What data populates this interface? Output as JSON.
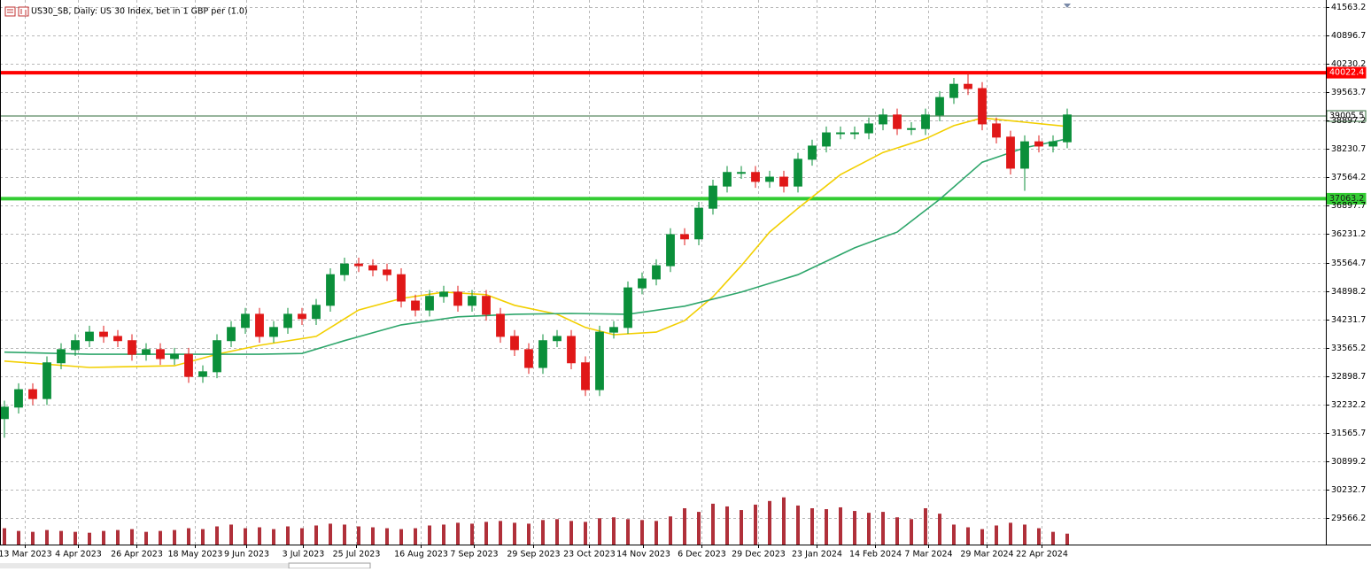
{
  "chart_data": {
    "type": "candlestick",
    "title": "US30_SB, Daily:  US 30 Index, bet in 1 GBP per (1.0)",
    "up_color": "#0b8f3a",
    "down_color": "#e01818",
    "grid": true,
    "open": [
      31900,
      32170,
      32580,
      32370,
      33210,
      33520,
      33730,
      33930,
      33830,
      33730,
      33410,
      33520,
      33310,
      33410,
      32890,
      33000,
      33730,
      34040,
      34350,
      33830,
      34040,
      34350,
      34250,
      34560,
      35280,
      35530,
      35490,
      35390,
      35280,
      34660,
      34450,
      34770,
      34870,
      34560,
      34770,
      34350,
      33830,
      33520,
      33100,
      33730,
      33830,
      33210,
      32580,
      33930,
      34040,
      34970,
      35180,
      35490,
      36220,
      36120,
      36840,
      37360,
      37680,
      37680,
      37470,
      37570,
      37360,
      37990,
      38300,
      38610,
      38610,
      38610,
      38820,
      39030,
      38710,
      38710,
      39030,
      39440,
      39750,
      39650,
      38820,
      38510,
      37780,
      38400,
      38300,
      38400
    ],
    "high": [
      32320,
      32730,
      32730,
      33360,
      33670,
      33880,
      34080,
      34080,
      33980,
      33880,
      33670,
      33670,
      33560,
      33560,
      33150,
      33880,
      34190,
      34500,
      34500,
      34190,
      34500,
      34500,
      34710,
      35430,
      35680,
      35680,
      35640,
      35540,
      35430,
      34810,
      34920,
      35020,
      35020,
      34920,
      34920,
      34500,
      33980,
      33670,
      33880,
      33980,
      33980,
      33360,
      34080,
      34190,
      35120,
      35330,
      35640,
      36370,
      36370,
      36990,
      37510,
      37830,
      37830,
      37830,
      37720,
      37720,
      38140,
      38450,
      38760,
      38760,
      38760,
      38970,
      39180,
      39180,
      38860,
      39180,
      39590,
      39900,
      40030,
      39800,
      38970,
      38660,
      38550,
      38550,
      38550,
      39180
    ],
    "low": [
      31450,
      32020,
      32220,
      32220,
      33060,
      33370,
      33580,
      33680,
      33580,
      33260,
      33260,
      33160,
      33160,
      32740,
      32740,
      32850,
      33580,
      33890,
      33680,
      33680,
      33890,
      34100,
      34100,
      34410,
      35130,
      35340,
      35240,
      35130,
      34510,
      34300,
      34300,
      34620,
      34410,
      34410,
      34200,
      33680,
      33370,
      32950,
      32950,
      33580,
      33060,
      32430,
      32430,
      33780,
      33890,
      34820,
      35030,
      35340,
      35970,
      35970,
      36690,
      37210,
      37530,
      37320,
      37320,
      37210,
      37210,
      37840,
      38150,
      38460,
      38460,
      38460,
      38670,
      38560,
      38560,
      38560,
      38880,
      39290,
      39500,
      38670,
      38360,
      37630,
      37250,
      38150,
      38150,
      38250
    ],
    "close": [
      32170,
      32580,
      32370,
      33210,
      33520,
      33730,
      33930,
      33830,
      33730,
      33410,
      33520,
      33310,
      33410,
      32890,
      33000,
      33730,
      34040,
      34350,
      33830,
      34040,
      34350,
      34250,
      34560,
      35280,
      35530,
      35490,
      35390,
      35280,
      34660,
      34450,
      34770,
      34870,
      34560,
      34770,
      34350,
      33830,
      33520,
      33100,
      33730,
      33830,
      33210,
      32580,
      33930,
      34040,
      34970,
      35180,
      35490,
      36220,
      36120,
      36840,
      37360,
      37680,
      37680,
      37470,
      37570,
      37360,
      37990,
      38300,
      38610,
      38610,
      38610,
      38820,
      39030,
      38710,
      38710,
      39030,
      39440,
      39750,
      39650,
      38820,
      38510,
      37780,
      38400,
      38300,
      38400,
      39030
    ],
    "series": [
      {
        "color": "#f2cf00",
        "x": [
          0,
          6,
          12,
          15,
          18,
          22,
          25,
          28,
          31,
          34,
          36,
          39,
          41,
          43,
          46,
          48,
          50,
          52,
          54,
          56,
          59,
          62,
          65,
          67,
          69,
          72,
          75
        ],
        "values": [
          33250,
          33100,
          33140,
          33410,
          33620,
          33830,
          34450,
          34720,
          34870,
          34810,
          34560,
          34350,
          34040,
          33870,
          33930,
          34200,
          34760,
          35490,
          36280,
          36840,
          37630,
          38150,
          38470,
          38780,
          38960,
          38860,
          38760
        ]
      },
      {
        "color": "#2ea66b",
        "x": [
          0,
          6,
          12,
          18,
          21,
          24,
          28,
          32,
          36,
          40,
          44,
          48,
          52,
          56,
          60,
          63,
          66,
          69,
          72,
          75
        ],
        "values": [
          33460,
          33410,
          33410,
          33410,
          33430,
          33730,
          34100,
          34290,
          34350,
          34370,
          34350,
          34540,
          34870,
          35280,
          35910,
          36280,
          37050,
          37920,
          38260,
          38470
        ]
      }
    ],
    "volume": [
      18,
      15,
      14,
      16,
      15,
      14,
      13,
      15,
      16,
      17,
      14,
      15,
      16,
      18,
      17,
      20,
      22,
      18,
      19,
      17,
      20,
      18,
      21,
      23,
      22,
      20,
      19,
      18,
      17,
      18,
      21,
      22,
      24,
      23,
      25,
      26,
      24,
      23,
      27,
      28,
      26,
      25,
      29,
      30,
      28,
      27,
      26,
      31,
      40,
      36,
      45,
      42,
      38,
      44,
      48,
      52,
      43,
      40,
      39,
      41,
      37,
      35,
      36,
      30,
      28,
      40,
      34,
      22,
      19,
      17,
      21,
      24,
      22,
      18,
      14,
      12
    ],
    "volume_color": "#b0303a",
    "volume_lim": [
      0,
      600
    ],
    "levels": [
      {
        "value": 40022.4,
        "color": "#ff0000",
        "style": "thick",
        "label_fill": "#ff0000",
        "label_text": "#ffffff"
      },
      {
        "value": 39005.5,
        "color": "#2f6b3a",
        "style": "thin",
        "label_fill": "#ffffff",
        "label_text": "#000000"
      },
      {
        "value": 37063.2,
        "color": "#33cc33",
        "style": "thick",
        "label_fill": "#33cc33",
        "label_text": "#1a1a1a"
      }
    ],
    "ylim": [
      28942.5,
      41729.5
    ],
    "yticks": [
      41563.2,
      40896.7,
      40230.2,
      39563.7,
      38897.2,
      38230.7,
      37564.2,
      36897.7,
      36231.2,
      35564.7,
      34898.2,
      34231.7,
      33565.2,
      32898.7,
      32232.2,
      31565.7,
      30899.2,
      30232.7,
      29566.2
    ],
    "xlim": [
      -0.3125,
      93.25
    ],
    "xticks": [
      {
        "value": 1.44,
        "label": "13 Mar 2023"
      },
      {
        "value": 5.19,
        "label": "4 Apr 2023"
      },
      {
        "value": 9.31,
        "label": "26 Apr 2023"
      },
      {
        "value": 13.44,
        "label": "18 May 2023"
      },
      {
        "value": 17.06,
        "label": "9 Jun 2023"
      },
      {
        "value": 21.06,
        "label": "3 Jul 2023"
      },
      {
        "value": 24.81,
        "label": "25 Jul 2023"
      },
      {
        "value": 29.38,
        "label": "16 Aug 2023"
      },
      {
        "value": 33.13,
        "label": "7 Sep 2023"
      },
      {
        "value": 37.31,
        "label": "29 Sep 2023"
      },
      {
        "value": 41.25,
        "label": "23 Oct 2023"
      },
      {
        "value": 45.06,
        "label": "14 Nov 2023"
      },
      {
        "value": 49.19,
        "label": "6 Dec 2023"
      },
      {
        "value": 53.19,
        "label": "29 Dec 2023"
      },
      {
        "value": 57.31,
        "label": "23 Jan 2024"
      },
      {
        "value": 61.44,
        "label": "14 Feb 2024"
      },
      {
        "value": 65.19,
        "label": "7 Mar 2024"
      },
      {
        "value": 69.31,
        "label": "29 Mar 2024"
      },
      {
        "value": 73.19,
        "label": "22 Apr 2024"
      }
    ]
  }
}
